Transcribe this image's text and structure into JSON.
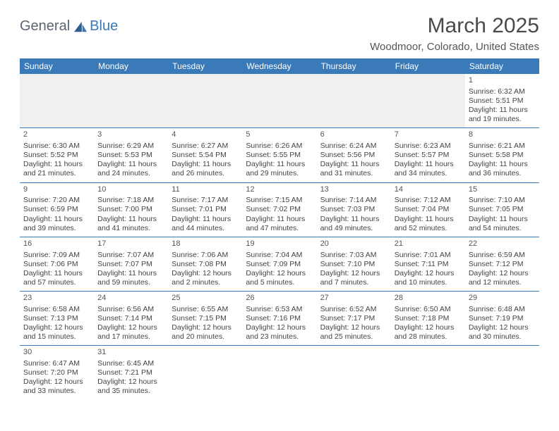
{
  "brand": {
    "general": "General",
    "blue": "Blue"
  },
  "title": "March 2025",
  "location": "Woodmoor, Colorado, United States",
  "colors": {
    "header_bg": "#3a7ab8",
    "header_text": "#ffffff",
    "cell_text": "#444444",
    "border": "#3a7ab8",
    "page_bg": "#ffffff",
    "empty_bg": "#f0f0f0"
  },
  "weekdays": [
    "Sunday",
    "Monday",
    "Tuesday",
    "Wednesday",
    "Thursday",
    "Friday",
    "Saturday"
  ],
  "weeks": [
    [
      null,
      null,
      null,
      null,
      null,
      null,
      {
        "d": "1",
        "sr": "Sunrise: 6:32 AM",
        "ss": "Sunset: 5:51 PM",
        "dl": "Daylight: 11 hours and 19 minutes."
      }
    ],
    [
      {
        "d": "2",
        "sr": "Sunrise: 6:30 AM",
        "ss": "Sunset: 5:52 PM",
        "dl": "Daylight: 11 hours and 21 minutes."
      },
      {
        "d": "3",
        "sr": "Sunrise: 6:29 AM",
        "ss": "Sunset: 5:53 PM",
        "dl": "Daylight: 11 hours and 24 minutes."
      },
      {
        "d": "4",
        "sr": "Sunrise: 6:27 AM",
        "ss": "Sunset: 5:54 PM",
        "dl": "Daylight: 11 hours and 26 minutes."
      },
      {
        "d": "5",
        "sr": "Sunrise: 6:26 AM",
        "ss": "Sunset: 5:55 PM",
        "dl": "Daylight: 11 hours and 29 minutes."
      },
      {
        "d": "6",
        "sr": "Sunrise: 6:24 AM",
        "ss": "Sunset: 5:56 PM",
        "dl": "Daylight: 11 hours and 31 minutes."
      },
      {
        "d": "7",
        "sr": "Sunrise: 6:23 AM",
        "ss": "Sunset: 5:57 PM",
        "dl": "Daylight: 11 hours and 34 minutes."
      },
      {
        "d": "8",
        "sr": "Sunrise: 6:21 AM",
        "ss": "Sunset: 5:58 PM",
        "dl": "Daylight: 11 hours and 36 minutes."
      }
    ],
    [
      {
        "d": "9",
        "sr": "Sunrise: 7:20 AM",
        "ss": "Sunset: 6:59 PM",
        "dl": "Daylight: 11 hours and 39 minutes."
      },
      {
        "d": "10",
        "sr": "Sunrise: 7:18 AM",
        "ss": "Sunset: 7:00 PM",
        "dl": "Daylight: 11 hours and 41 minutes."
      },
      {
        "d": "11",
        "sr": "Sunrise: 7:17 AM",
        "ss": "Sunset: 7:01 PM",
        "dl": "Daylight: 11 hours and 44 minutes."
      },
      {
        "d": "12",
        "sr": "Sunrise: 7:15 AM",
        "ss": "Sunset: 7:02 PM",
        "dl": "Daylight: 11 hours and 47 minutes."
      },
      {
        "d": "13",
        "sr": "Sunrise: 7:14 AM",
        "ss": "Sunset: 7:03 PM",
        "dl": "Daylight: 11 hours and 49 minutes."
      },
      {
        "d": "14",
        "sr": "Sunrise: 7:12 AM",
        "ss": "Sunset: 7:04 PM",
        "dl": "Daylight: 11 hours and 52 minutes."
      },
      {
        "d": "15",
        "sr": "Sunrise: 7:10 AM",
        "ss": "Sunset: 7:05 PM",
        "dl": "Daylight: 11 hours and 54 minutes."
      }
    ],
    [
      {
        "d": "16",
        "sr": "Sunrise: 7:09 AM",
        "ss": "Sunset: 7:06 PM",
        "dl": "Daylight: 11 hours and 57 minutes."
      },
      {
        "d": "17",
        "sr": "Sunrise: 7:07 AM",
        "ss": "Sunset: 7:07 PM",
        "dl": "Daylight: 11 hours and 59 minutes."
      },
      {
        "d": "18",
        "sr": "Sunrise: 7:06 AM",
        "ss": "Sunset: 7:08 PM",
        "dl": "Daylight: 12 hours and 2 minutes."
      },
      {
        "d": "19",
        "sr": "Sunrise: 7:04 AM",
        "ss": "Sunset: 7:09 PM",
        "dl": "Daylight: 12 hours and 5 minutes."
      },
      {
        "d": "20",
        "sr": "Sunrise: 7:03 AM",
        "ss": "Sunset: 7:10 PM",
        "dl": "Daylight: 12 hours and 7 minutes."
      },
      {
        "d": "21",
        "sr": "Sunrise: 7:01 AM",
        "ss": "Sunset: 7:11 PM",
        "dl": "Daylight: 12 hours and 10 minutes."
      },
      {
        "d": "22",
        "sr": "Sunrise: 6:59 AM",
        "ss": "Sunset: 7:12 PM",
        "dl": "Daylight: 12 hours and 12 minutes."
      }
    ],
    [
      {
        "d": "23",
        "sr": "Sunrise: 6:58 AM",
        "ss": "Sunset: 7:13 PM",
        "dl": "Daylight: 12 hours and 15 minutes."
      },
      {
        "d": "24",
        "sr": "Sunrise: 6:56 AM",
        "ss": "Sunset: 7:14 PM",
        "dl": "Daylight: 12 hours and 17 minutes."
      },
      {
        "d": "25",
        "sr": "Sunrise: 6:55 AM",
        "ss": "Sunset: 7:15 PM",
        "dl": "Daylight: 12 hours and 20 minutes."
      },
      {
        "d": "26",
        "sr": "Sunrise: 6:53 AM",
        "ss": "Sunset: 7:16 PM",
        "dl": "Daylight: 12 hours and 23 minutes."
      },
      {
        "d": "27",
        "sr": "Sunrise: 6:52 AM",
        "ss": "Sunset: 7:17 PM",
        "dl": "Daylight: 12 hours and 25 minutes."
      },
      {
        "d": "28",
        "sr": "Sunrise: 6:50 AM",
        "ss": "Sunset: 7:18 PM",
        "dl": "Daylight: 12 hours and 28 minutes."
      },
      {
        "d": "29",
        "sr": "Sunrise: 6:48 AM",
        "ss": "Sunset: 7:19 PM",
        "dl": "Daylight: 12 hours and 30 minutes."
      }
    ],
    [
      {
        "d": "30",
        "sr": "Sunrise: 6:47 AM",
        "ss": "Sunset: 7:20 PM",
        "dl": "Daylight: 12 hours and 33 minutes."
      },
      {
        "d": "31",
        "sr": "Sunrise: 6:45 AM",
        "ss": "Sunset: 7:21 PM",
        "dl": "Daylight: 12 hours and 35 minutes."
      },
      null,
      null,
      null,
      null,
      null
    ]
  ]
}
